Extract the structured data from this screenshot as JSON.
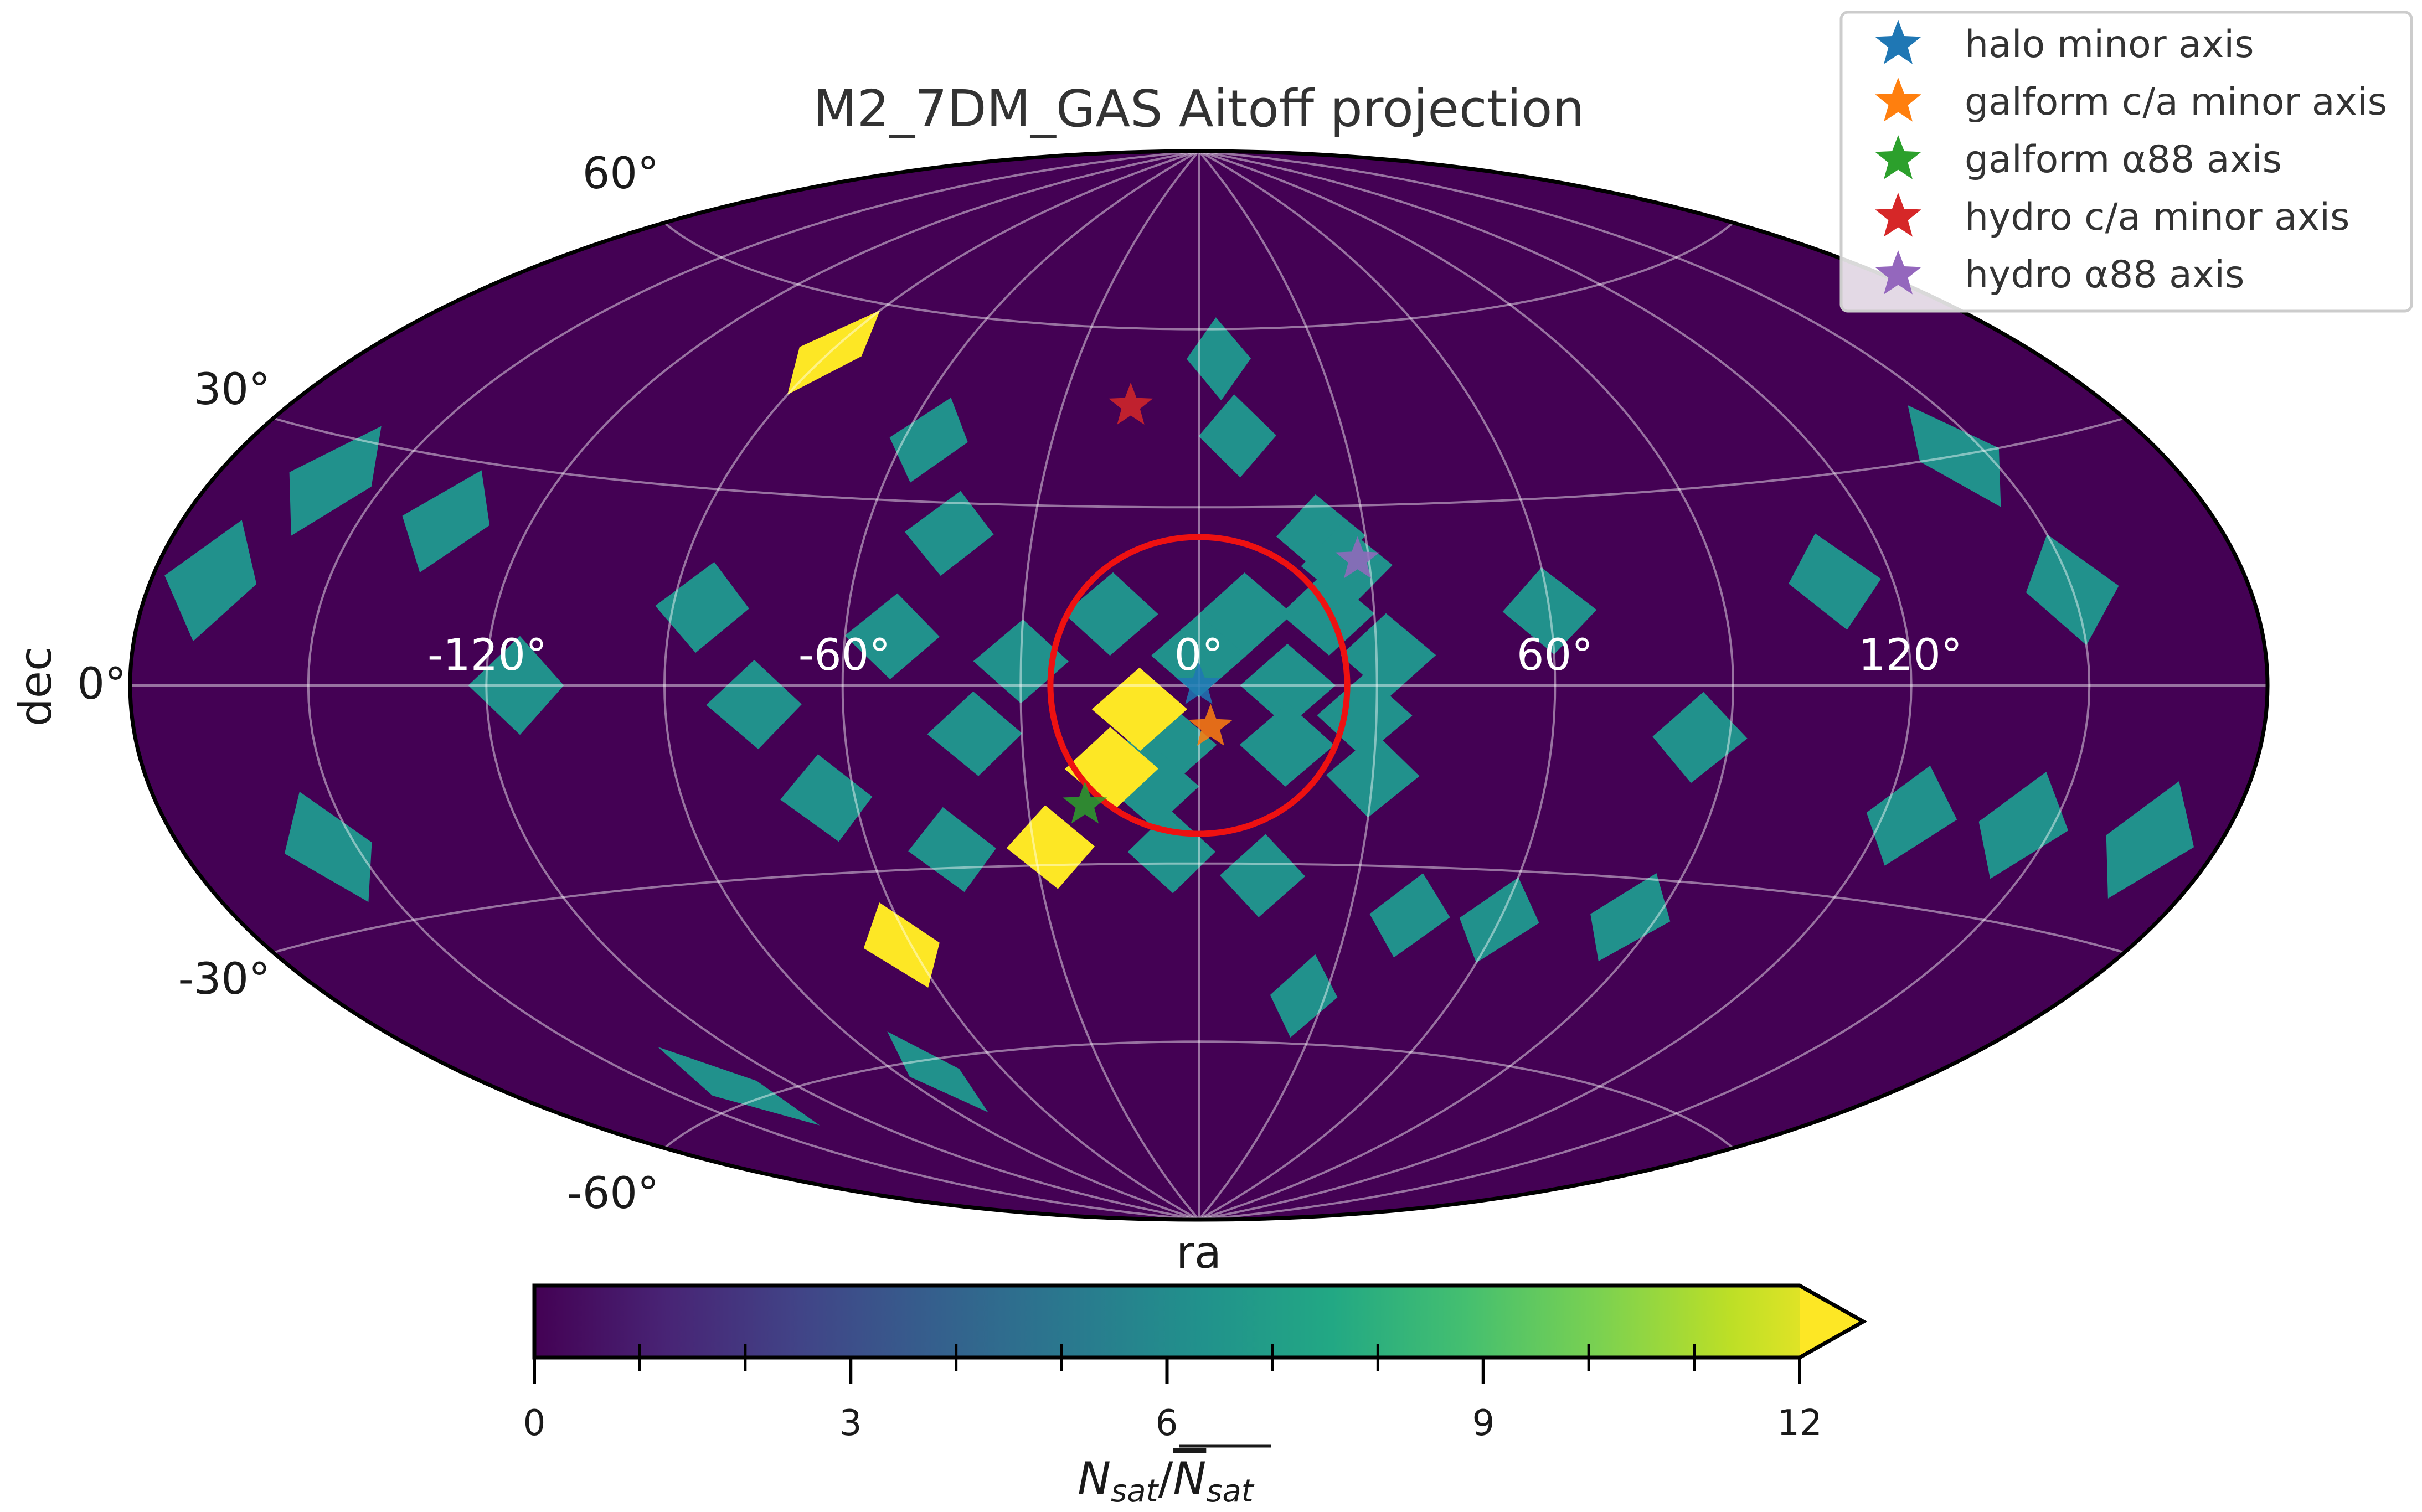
{
  "chart_data": {
    "type": "heatmap",
    "projection": "aitoff",
    "title": "M2_7DM_GAS Aitoff projection",
    "xlabel": "ra",
    "ylabel": "dec",
    "xticks": [
      "-120°",
      "-60°",
      "0°",
      "60°",
      "120°"
    ],
    "yticks": [
      "60°",
      "30°",
      "0°",
      "-30°",
      "-60°"
    ],
    "grid": true,
    "colorbar": {
      "label": "N_sat / N̄_sat",
      "label_main": "N",
      "label_sub": "sat",
      "label_sep": "/",
      "ticks": [
        "0",
        "3",
        "6",
        "9",
        "12"
      ],
      "range": [
        0,
        12
      ],
      "colormap": "viridis",
      "extend": "max"
    },
    "background_value": 0,
    "cells": [
      {
        "ra": 0,
        "dec": 5,
        "value": 6
      },
      {
        "ra": 8,
        "dec": 12,
        "value": 6
      },
      {
        "ra": 22,
        "dec": 12,
        "value": 6
      },
      {
        "ra": 32,
        "dec": 5,
        "value": 6
      },
      {
        "ra": 15,
        "dec": 0,
        "value": 6
      },
      {
        "ra": 28,
        "dec": -5,
        "value": 6
      },
      {
        "ra": 15,
        "dec": -10,
        "value": 6
      },
      {
        "ra": 30,
        "dec": -15,
        "value": 6
      },
      {
        "ra": 22,
        "dec": 25,
        "value": 6
      },
      {
        "ra": 26,
        "dec": 20,
        "value": 6
      },
      {
        "ra": -15,
        "dec": 12,
        "value": 6
      },
      {
        "ra": -30,
        "dec": 4,
        "value": 6
      },
      {
        "ra": -5,
        "dec": -10,
        "value": 6
      },
      {
        "ra": -38,
        "dec": -8,
        "value": 6
      },
      {
        "ra": -8,
        "dec": -17,
        "value": 6
      },
      {
        "ra": -5,
        "dec": -28,
        "value": 6
      },
      {
        "ra": 12,
        "dec": -32,
        "value": 6
      },
      {
        "ra": 5,
        "dec": 55,
        "value": 6
      },
      {
        "ra": 8,
        "dec": 42,
        "value": 6
      },
      {
        "ra": -55,
        "dec": 40,
        "value": 6
      },
      {
        "ra": -45,
        "dec": 25,
        "value": 6
      },
      {
        "ra": -52,
        "dec": 8,
        "value": 6
      },
      {
        "ra": -85,
        "dec": 12,
        "value": 6
      },
      {
        "ra": -75,
        "dec": -3,
        "value": 6
      },
      {
        "ra": -115,
        "dec": 0,
        "value": 6
      },
      {
        "ra": -135,
        "dec": 22,
        "value": 6
      },
      {
        "ra": -160,
        "dec": 25,
        "value": 6
      },
      {
        "ra": -170,
        "dec": 12,
        "value": 6
      },
      {
        "ra": -155,
        "dec": -20,
        "value": 6
      },
      {
        "ra": -65,
        "dec": -18,
        "value": 6
      },
      {
        "ra": -45,
        "dec": -27,
        "value": 6
      },
      {
        "ra": -80,
        "dec": -62,
        "value": 6
      },
      {
        "ra": -135,
        "dec": -58,
        "value": 6
      },
      {
        "ra": 60,
        "dec": 12,
        "value": 6
      },
      {
        "ra": 110,
        "dec": 15,
        "value": 6
      },
      {
        "ra": 150,
        "dec": 12,
        "value": 6
      },
      {
        "ra": 145,
        "dec": 30,
        "value": 6
      },
      {
        "ra": 85,
        "dec": -8,
        "value": 6
      },
      {
        "ra": 125,
        "dec": -18,
        "value": 6
      },
      {
        "ra": 145,
        "dec": -18,
        "value": 6
      },
      {
        "ra": 168,
        "dec": -18,
        "value": 6
      },
      {
        "ra": 42,
        "dec": -38,
        "value": 6
      },
      {
        "ra": 60,
        "dec": -38,
        "value": 6
      },
      {
        "ra": 85,
        "dec": -36,
        "value": 6
      },
      {
        "ra": 25,
        "dec": -52,
        "value": 6
      },
      {
        "ra": -10,
        "dec": -4,
        "value": 12
      },
      {
        "ra": -15,
        "dec": -14,
        "value": 12
      },
      {
        "ra": -27,
        "dec": -27,
        "value": 12
      },
      {
        "ra": -62,
        "dec": -42,
        "value": 12
      },
      {
        "ra": -90,
        "dec": 52,
        "value": 12
      }
    ],
    "circle": {
      "center_ra": 0,
      "center_dec": 0,
      "radius_deg": 25,
      "color": "#ee1111"
    },
    "legend": {
      "placement": "top-right",
      "entries": [
        {
          "label": "halo minor axis",
          "color": "#1f77b4"
        },
        {
          "label": "galform c/a minor axis",
          "color": "#ff7f0e"
        },
        {
          "label": "galform α88 axis",
          "color": "#2ca02c"
        },
        {
          "label": "hydro c/a minor axis",
          "color": "#d62728"
        },
        {
          "label": "hydro α88 axis",
          "color": "#9467bd"
        }
      ]
    },
    "markers": [
      {
        "name": "halo minor axis",
        "ra": 0,
        "dec": 0,
        "color": "#1f77b4"
      },
      {
        "name": "galform c/a minor axis",
        "ra": 2,
        "dec": -7,
        "color": "#ff7f0e"
      },
      {
        "name": "galform α88 axis",
        "ra": -20,
        "dec": -20,
        "color": "#2ca02c"
      },
      {
        "name": "hydro c/a minor axis",
        "ra": -15,
        "dec": 47,
        "color": "#d62728"
      },
      {
        "name": "hydro α88 axis",
        "ra": 28,
        "dec": 21,
        "color": "#9467bd"
      }
    ]
  }
}
